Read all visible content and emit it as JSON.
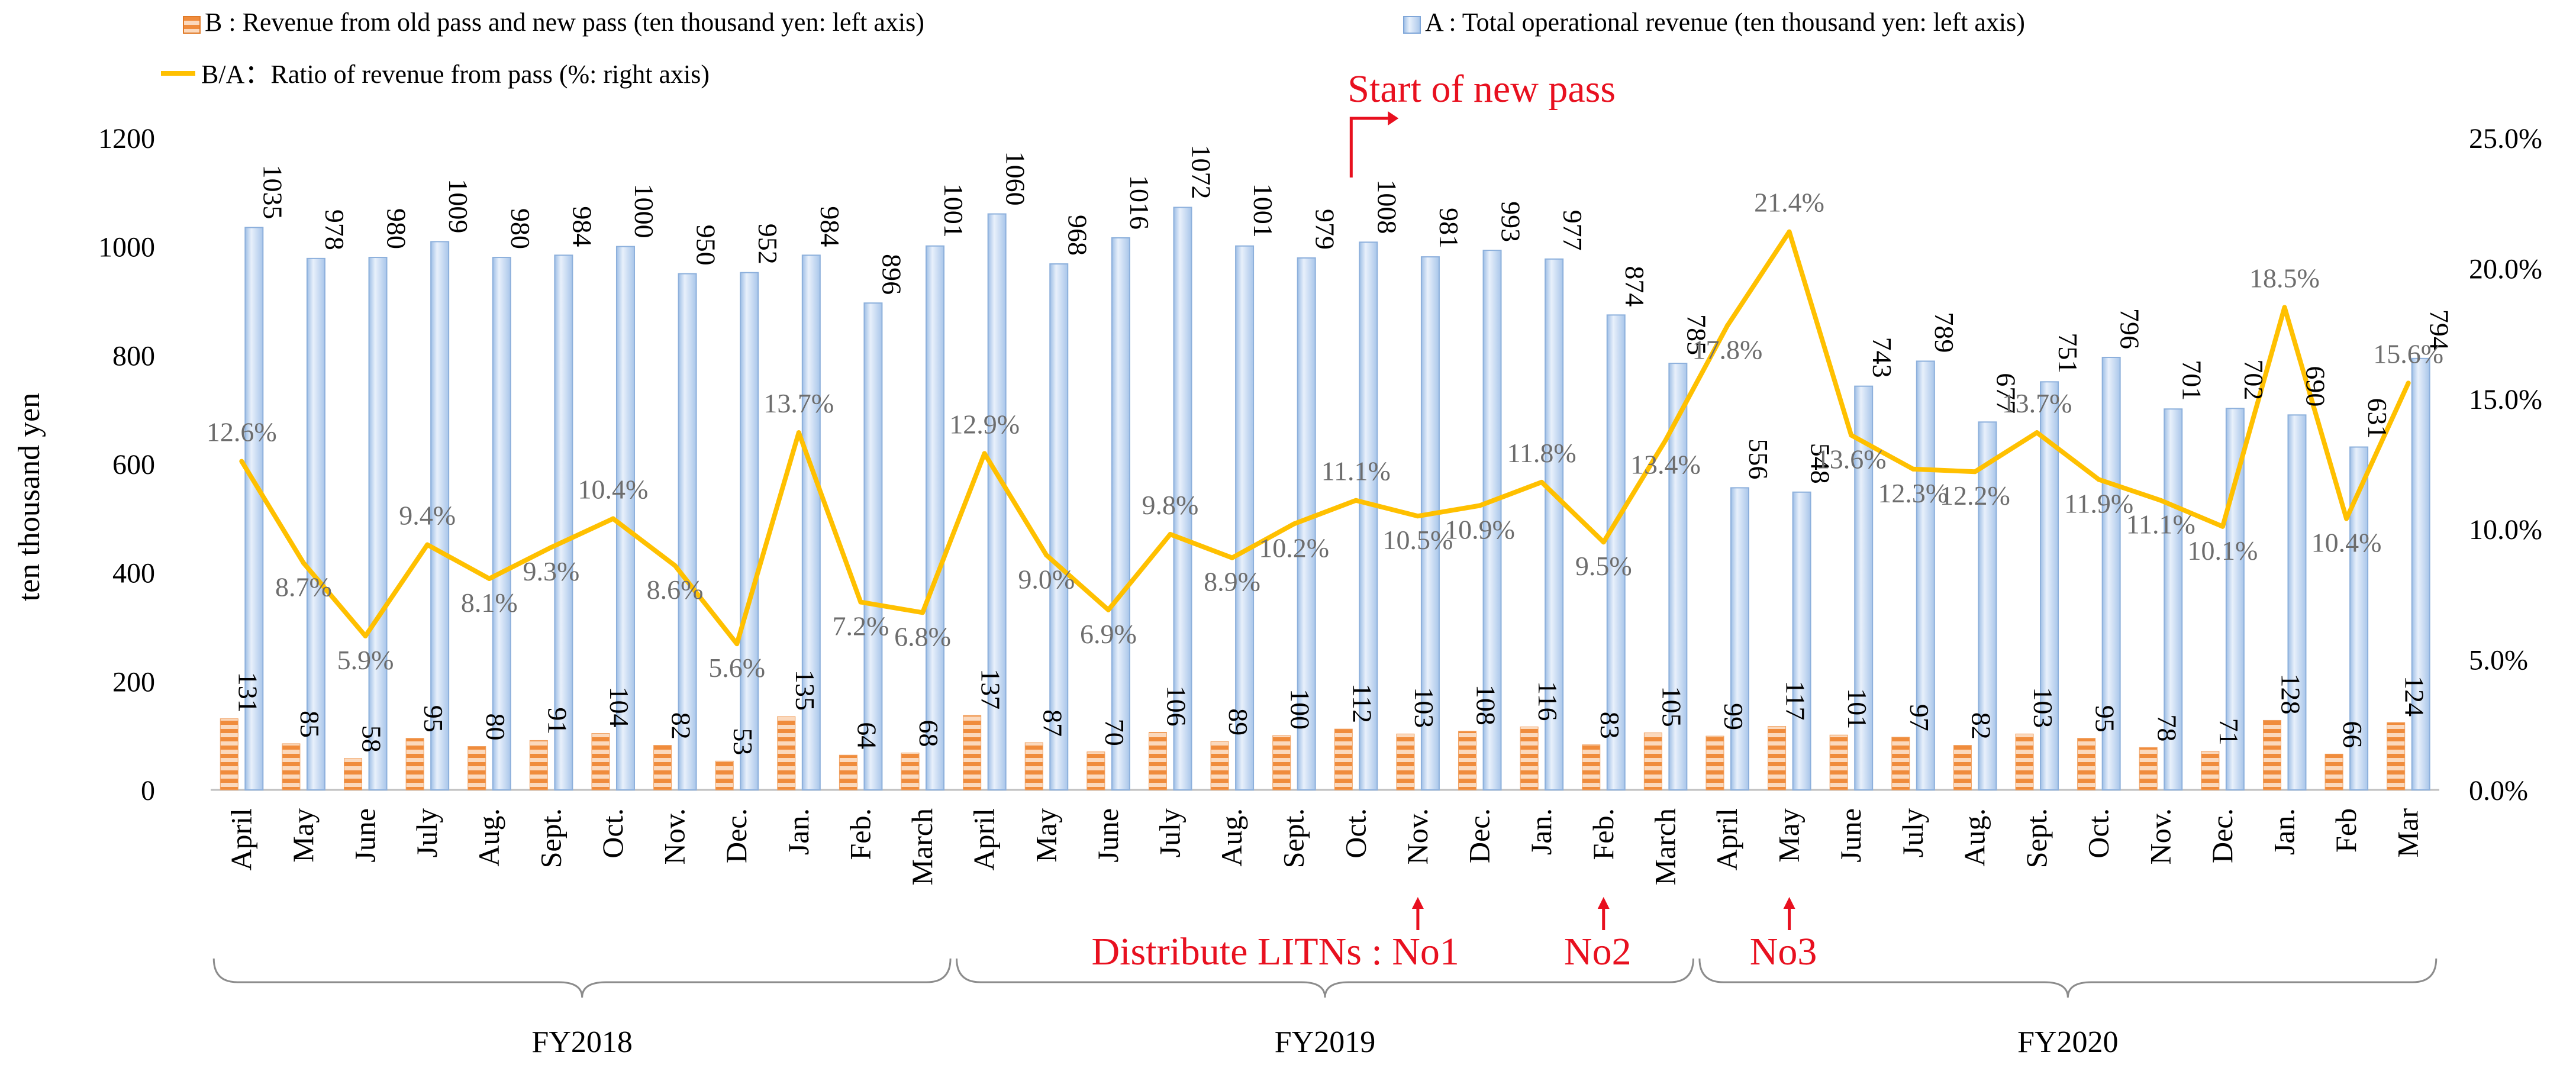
{
  "chart_data": {
    "type": "bar",
    "legend": {
      "b_label": "B : Revenue from old pass and new pass (ten thousand yen: left axis)",
      "a_label": "A : Total operational revenue (ten thousand yen: left axis)",
      "ratio_label": "B/A：Ratio of revenue from pass (%: right axis)"
    },
    "ylabel": "ten thousand yen",
    "ylim_left": [
      0,
      1200
    ],
    "ylim_right": [
      0,
      25
    ],
    "left_ticks": [
      "0",
      "200",
      "400",
      "600",
      "800",
      "1000",
      "1200"
    ],
    "right_ticks": [
      "0.0%",
      "5.0%",
      "10.0%",
      "15.0%",
      "20.0%",
      "25.0%"
    ],
    "categories": [
      "April",
      "May",
      "June",
      "July",
      "Aug.",
      "Sept.",
      "Oct.",
      "Nov.",
      "Dec.",
      "Jan.",
      "Feb.",
      "March",
      "April",
      "May",
      "June",
      "July",
      "Aug.",
      "Sept.",
      "Oct.",
      "Nov.",
      "Dec.",
      "Jan.",
      "Feb.",
      "March",
      "April",
      "May",
      "June",
      "July",
      "Aug.",
      "Sept.",
      "Oct.",
      "Nov.",
      "Dec.",
      "Jan.",
      "Feb",
      "Mar"
    ],
    "series": [
      {
        "name": "A : Total operational revenue (ten thousand yen: left axis)",
        "values": [
          1035,
          978,
          980,
          1009,
          980,
          984,
          1000,
          950,
          952,
          984,
          896,
          1001,
          1060,
          968,
          1016,
          1072,
          1001,
          979,
          1008,
          981,
          993,
          977,
          874,
          785,
          556,
          548,
          743,
          789,
          677,
          751,
          796,
          701,
          702,
          690,
          631,
          794
        ],
        "labels": [
          "1035",
          "978",
          "980",
          "1009",
          "980",
          "984",
          "1000",
          "950",
          "952",
          "984",
          "896",
          "1001",
          "1060",
          "968",
          "1016",
          "1072",
          "1001",
          "979",
          "1008",
          "981",
          "993",
          "977",
          "874",
          "785",
          "556",
          "548",
          "743",
          "789",
          "677",
          "751",
          "796",
          "701",
          "702",
          "690",
          "631",
          "794"
        ],
        "color": "#c9dcf3"
      },
      {
        "name": "B : Revenue from old pass and new pass (ten thousand yen: left axis)",
        "values": [
          131,
          85,
          58,
          95,
          80,
          91,
          104,
          82,
          53,
          135,
          64,
          68,
          137,
          87,
          70,
          106,
          89,
          100,
          112,
          103,
          108,
          116,
          83,
          105,
          99,
          117,
          101,
          97,
          82,
          103,
          95,
          78,
          71,
          128,
          66,
          124
        ],
        "labels": [
          "131",
          "85",
          "58",
          "95",
          "80",
          "91",
          "104",
          "82",
          "53",
          "135",
          "64",
          "68",
          "137",
          "87",
          "70",
          "106",
          "89",
          "100",
          "112",
          "103",
          "108",
          "116",
          "83",
          "105",
          "99",
          "117",
          "101",
          "97",
          "82",
          "103",
          "95",
          "78",
          "71",
          "128",
          "66",
          "124"
        ],
        "color": "#f08c3c"
      },
      {
        "name": "B/A：Ratio of revenue from pass (%: right axis)",
        "values": [
          12.6,
          8.7,
          5.9,
          9.4,
          8.1,
          9.3,
          10.4,
          8.6,
          5.6,
          13.7,
          7.2,
          6.8,
          12.9,
          9.0,
          6.9,
          9.8,
          8.9,
          10.2,
          11.1,
          10.5,
          10.9,
          11.8,
          9.5,
          13.4,
          17.8,
          21.4,
          13.6,
          12.3,
          12.2,
          13.7,
          11.9,
          11.1,
          10.1,
          18.5,
          10.4,
          15.6
        ],
        "labels": [
          "12.6%",
          "8.7%",
          "5.9%",
          "9.4%",
          "8.1%",
          "9.3%",
          "10.4%",
          "8.6%",
          "5.6%",
          "13.7%",
          "7.2%",
          "6.8%",
          "12.9%",
          "9.0%",
          "6.9%",
          "9.8%",
          "8.9%",
          "10.2%",
          "11.1%",
          "10.5%",
          "10.9%",
          "11.8%",
          "9.5%",
          "13.4%",
          "17.8%",
          "21.4%",
          "13.6%",
          "12.3%",
          "12.2%",
          "13.7%",
          "11.9%",
          "11.1%",
          "10.1%",
          "18.5%",
          "10.4%",
          "15.6%"
        ],
        "color": "#ffc000"
      }
    ],
    "fiscal_years": [
      {
        "label": "FY2018",
        "start": 0,
        "end": 11
      },
      {
        "label": "FY2019",
        "start": 12,
        "end": 23
      },
      {
        "label": "FY2020",
        "start": 24,
        "end": 35
      }
    ],
    "annotations": {
      "new_pass": {
        "text": "Start of new pass",
        "index": 18,
        "color": "#e8101f"
      },
      "litns_prefix": {
        "text": "Distribute LITNs : ",
        "color": "#e8101f"
      },
      "litns": [
        {
          "text": "No1",
          "index": 19
        },
        {
          "text": "No2",
          "index": 22
        },
        {
          "text": "No3",
          "index": 25
        }
      ]
    },
    "grid": false,
    "legend_position": "top"
  }
}
